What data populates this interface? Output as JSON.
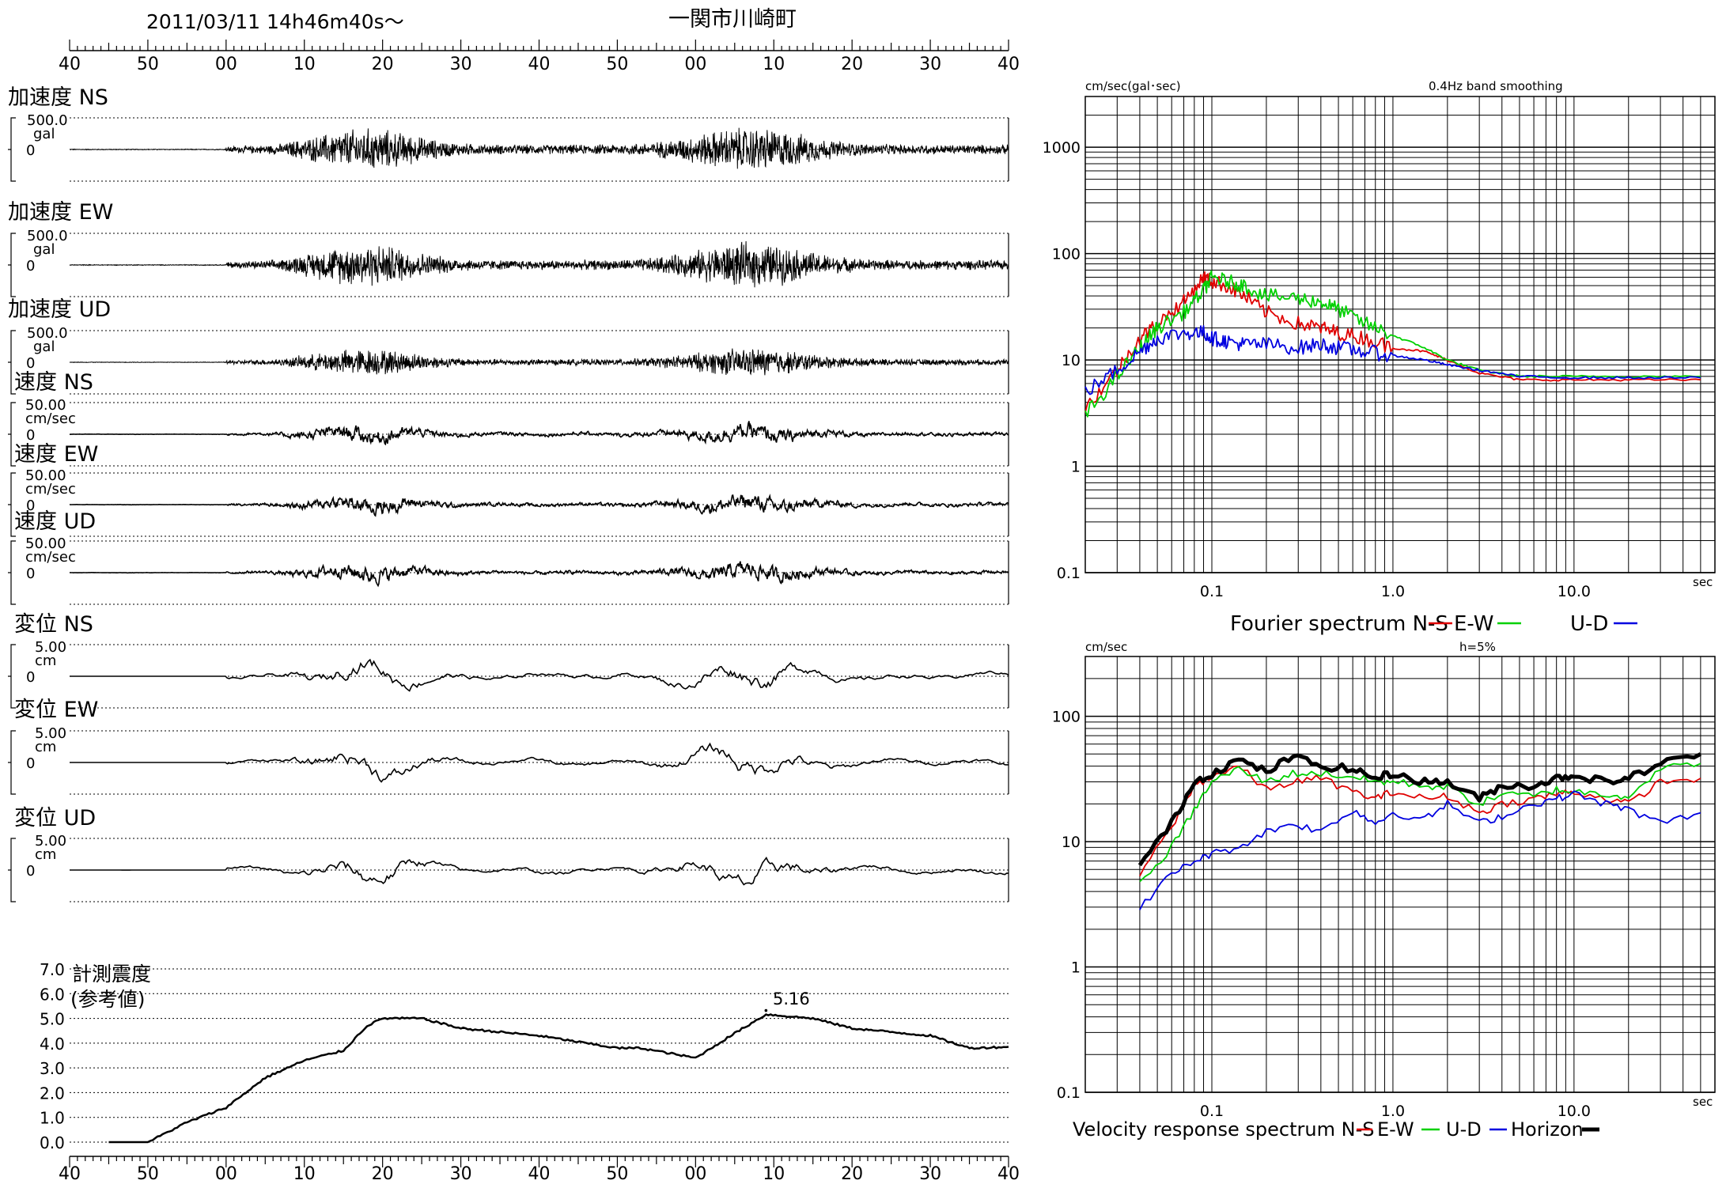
{
  "header": {
    "datetime": "2011/03/11  14h46m40s〜",
    "station": "一関市川崎町",
    "time_ticks": [
      "40",
      "50",
      "00",
      "10",
      "20",
      "30",
      "40",
      "50",
      "00",
      "10",
      "20",
      "30",
      "40"
    ]
  },
  "waveforms": [
    {
      "title": "加速度 NS",
      "scale": "500.0",
      "unit": "gal",
      "zero": "0"
    },
    {
      "title": "加速度 EW",
      "scale": "500.0",
      "unit": "gal",
      "zero": "0"
    },
    {
      "title": "加速度 UD",
      "scale": "500.0",
      "unit": "gal",
      "zero": "0"
    },
    {
      "title": "速度 NS",
      "scale": "50.00",
      "unit": "cm/sec",
      "zero": "0"
    },
    {
      "title": "速度 EW",
      "scale": "50.00",
      "unit": "cm/sec",
      "zero": "0"
    },
    {
      "title": "速度 UD",
      "scale": "50.00",
      "unit": "cm/sec",
      "zero": "0"
    },
    {
      "title": "変位 NS",
      "scale": "5.00",
      "unit": "cm",
      "zero": "0"
    },
    {
      "title": "変位 EW",
      "scale": "5.00",
      "unit": "cm",
      "zero": "0"
    },
    {
      "title": "変位 UD",
      "scale": "5.00",
      "unit": "cm",
      "zero": "0"
    }
  ],
  "intensity": {
    "label_line1": "計測震度",
    "label_line2": "(参考値)",
    "y_ticks": [
      "7.0",
      "6.0",
      "5.0",
      "4.0",
      "3.0",
      "2.0",
      "1.0",
      "0.0"
    ],
    "peak_label": "5.16"
  },
  "fourier": {
    "ylabel": "cm/sec(gal･sec)",
    "subtitle": "0.4Hz band smoothing",
    "y_ticks": [
      "1000",
      "100",
      "10",
      "1",
      "0.1"
    ],
    "x_ticks": [
      "0.1",
      "1.0",
      "10.0"
    ],
    "x_unit": "sec",
    "caption": "Fourier spectrum  N-S",
    "legend_ew": "E-W",
    "legend_ud": "U-D"
  },
  "response": {
    "ylabel": "cm/sec",
    "subtitle": "h=5%",
    "y_ticks": [
      "100",
      "10",
      "1",
      "0.1"
    ],
    "x_ticks": [
      "0.1",
      "1.0",
      "10.0"
    ],
    "x_unit": "sec",
    "caption": "Velocity response spectrum N-S",
    "legend_ew": "E-W",
    "legend_ud": "U-D",
    "legend_h": "Horizon"
  },
  "colors": {
    "ns": "#e00000",
    "ew": "#00d000",
    "ud": "#0000e0",
    "horizon": "#000000",
    "grid": "#000000"
  },
  "chart_data": [
    {
      "type": "line",
      "title": "計測震度 (参考値)",
      "x": [
        "14:46:45",
        "14:46:50",
        "14:46:55",
        "14:47:00",
        "14:47:05",
        "14:47:10",
        "14:47:15",
        "14:47:18",
        "14:47:20",
        "14:47:25",
        "14:47:30",
        "14:47:40",
        "14:47:50",
        "14:47:53",
        "14:48:00",
        "14:48:05",
        "14:48:09",
        "14:48:15",
        "14:48:20",
        "14:48:30",
        "14:48:35",
        "14:48:40"
      ],
      "values": [
        0.0,
        0.0,
        0.8,
        1.4,
        2.6,
        3.3,
        3.7,
        4.7,
        5.0,
        5.0,
        4.6,
        4.3,
        3.8,
        3.8,
        3.4,
        4.4,
        5.16,
        5.0,
        4.6,
        4.3,
        3.8,
        3.85
      ],
      "ylim": [
        0,
        7
      ],
      "peak": 5.16
    },
    {
      "type": "line",
      "title": "Fourier spectrum",
      "xlabel": "sec",
      "ylabel": "cm/sec(gal･sec)",
      "log_x": true,
      "log_y": true,
      "xlim": [
        0.02,
        60
      ],
      "ylim": [
        0.1,
        3000
      ],
      "x": [
        0.02,
        0.03,
        0.04,
        0.05,
        0.07,
        0.09,
        0.1,
        0.12,
        0.15,
        0.2,
        0.3,
        0.4,
        0.5,
        0.7,
        1.0,
        1.5,
        2.0,
        3.0,
        5.0,
        10.0,
        20.0,
        50.0
      ],
      "series": [
        {
          "name": "N-S",
          "values": [
            3.5,
            8,
            16,
            22,
            35,
            60,
            55,
            50,
            40,
            28,
            22,
            20,
            18,
            16,
            13,
            12,
            10,
            7.5,
            6.5,
            6.5,
            6.5,
            6.5
          ]
        },
        {
          "name": "E-W",
          "values": [
            3,
            7,
            13,
            20,
            28,
            45,
            60,
            55,
            50,
            40,
            38,
            35,
            30,
            22,
            17,
            13,
            10,
            8,
            7,
            7,
            7,
            7
          ]
        },
        {
          "name": "U-D",
          "values": [
            5,
            8,
            12,
            16,
            18,
            18,
            16,
            15,
            14,
            14,
            13,
            14,
            13,
            12,
            11,
            10,
            9,
            8,
            7,
            6.8,
            6.8,
            6.8
          ]
        }
      ]
    },
    {
      "type": "line",
      "title": "Velocity response spectrum",
      "xlabel": "sec",
      "ylabel": "cm/sec",
      "log_x": true,
      "log_y": true,
      "xlim": [
        0.02,
        60
      ],
      "ylim": [
        0.1,
        300
      ],
      "x": [
        0.04,
        0.06,
        0.08,
        0.1,
        0.14,
        0.2,
        0.28,
        0.4,
        0.6,
        0.8,
        1.0,
        1.5,
        2.0,
        3.0,
        4.0,
        6.0,
        8.0,
        10.0,
        15.0,
        20.0,
        30.0,
        50.0
      ],
      "series": [
        {
          "name": "N-S",
          "values": [
            5.5,
            13,
            28,
            33,
            40,
            26,
            30,
            32,
            25,
            22,
            25,
            22,
            23,
            17,
            20,
            22,
            24,
            25,
            22,
            20,
            30,
            32
          ]
        },
        {
          "name": "E-W",
          "values": [
            4.5,
            9,
            18,
            30,
            38,
            30,
            35,
            35,
            33,
            30,
            30,
            28,
            27,
            20,
            24,
            23,
            26,
            25,
            24,
            23,
            38,
            42
          ]
        },
        {
          "name": "U-D",
          "values": [
            3,
            5.5,
            7,
            8,
            9,
            12,
            14,
            12,
            18,
            14,
            17,
            15,
            20,
            14,
            16,
            20,
            22,
            24,
            20,
            18,
            14,
            17
          ]
        },
        {
          "name": "Horizon",
          "values": [
            6.5,
            14,
            30,
            35,
            45,
            36,
            48,
            40,
            38,
            32,
            35,
            30,
            30,
            22,
            28,
            28,
            32,
            34,
            30,
            32,
            42,
            50
          ]
        }
      ]
    }
  ]
}
